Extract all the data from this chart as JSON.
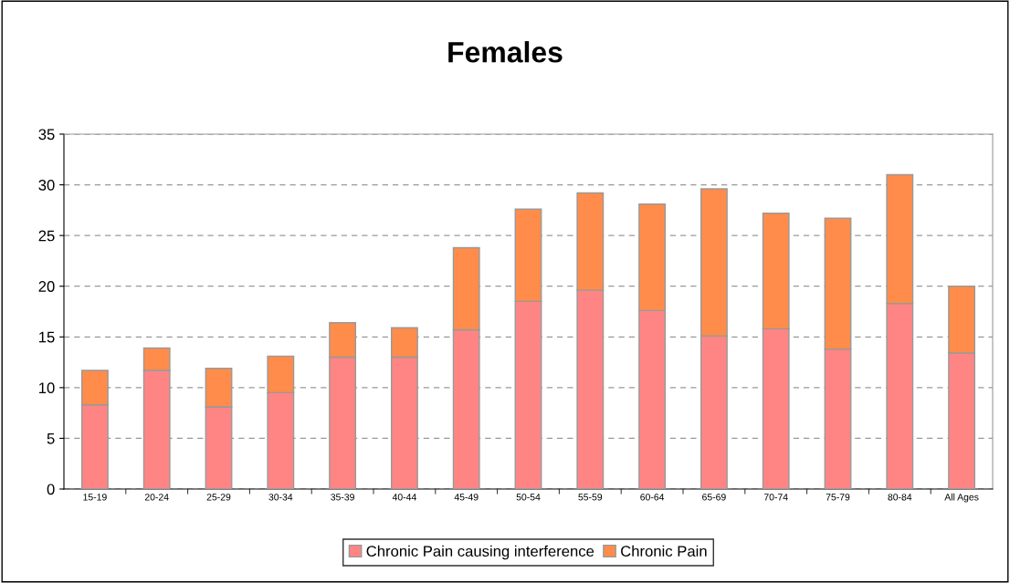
{
  "chart_data": {
    "type": "bar",
    "title": "Females",
    "stacked": true,
    "categories": [
      "15-19",
      "20-24",
      "25-29",
      "30-34",
      "35-39",
      "40-44",
      "45-49",
      "50-54",
      "55-59",
      "60-64",
      "65-69",
      "70-74",
      "75-79",
      "80-84",
      "All Ages"
    ],
    "series": [
      {
        "name": "Chronic Pain causing interference",
        "color": "#ff8585",
        "values": [
          8.3,
          11.7,
          8.1,
          9.5,
          13.0,
          13.0,
          15.7,
          18.5,
          19.6,
          17.6,
          15.1,
          15.8,
          13.8,
          18.3,
          13.4
        ]
      },
      {
        "name": "Chronic Pain",
        "color": "#ff8c4a",
        "values": [
          3.4,
          2.2,
          3.8,
          3.6,
          3.4,
          2.9,
          8.1,
          9.1,
          9.6,
          10.5,
          14.5,
          11.4,
          12.9,
          12.7,
          6.6
        ]
      }
    ],
    "ylim": [
      0,
      35
    ],
    "yticks": [
      0,
      5,
      10,
      15,
      20,
      25,
      30,
      35
    ],
    "grid": "y",
    "legend": "bottom"
  }
}
